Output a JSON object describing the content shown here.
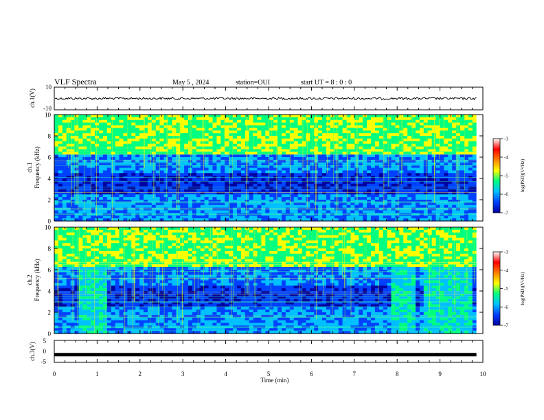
{
  "header": {
    "title": "VLF Spectra",
    "date": "May 5 , 2024",
    "station": "station=OUI",
    "start_ut": "start UT = 8 : 0 : 0"
  },
  "colorbar": {
    "label": "log(PSD)(V²/Hz)",
    "ticks": [
      "-3",
      "-4",
      "-5",
      "-6",
      "-7"
    ],
    "range": [
      -7,
      -3
    ],
    "colors": [
      "#0000a0",
      "#0040ff",
      "#00c0ff",
      "#00ff80",
      "#ffff00",
      "#ff8000",
      "#ff0000",
      "#ffffff"
    ]
  },
  "panels": {
    "ch1_waveform": {
      "ylabel": "ch.1(V)",
      "yticks": [
        "10",
        "-10"
      ],
      "ylim": [
        -10,
        10
      ]
    },
    "ch1_spectrum": {
      "ylabel": "ch.1",
      "ylabel2": "Frequency (kHz)",
      "yticks": [
        "10",
        "8",
        "6",
        "4",
        "2",
        "0"
      ],
      "ylim": [
        0,
        10
      ]
    },
    "ch2_spectrum": {
      "ylabel": "ch.2",
      "ylabel2": "Frequency (kHz)",
      "yticks": [
        "10",
        "8",
        "6",
        "4",
        "2",
        "0"
      ],
      "ylim": [
        0,
        10
      ]
    },
    "ch3_waveform": {
      "ylabel": "ch.3(V)",
      "yticks": [
        "5",
        "0",
        "-5"
      ],
      "ylim": [
        -5,
        5
      ],
      "value": -1.5
    }
  },
  "xaxis": {
    "label": "Time (min)",
    "ticks": [
      "0",
      "1",
      "2",
      "3",
      "4",
      "5",
      "6",
      "7",
      "8",
      "9",
      "10"
    ],
    "xlim": [
      0,
      10
    ],
    "data_end": 9.85
  },
  "chart_data": [
    {
      "type": "line",
      "title": "VLF Spectra",
      "ylabel": "ch.1(V)",
      "xlabel": "Time (min)",
      "xlim": [
        0,
        10
      ],
      "ylim": [
        -10,
        10
      ],
      "series": [
        {
          "x": [
            0,
            9.85
          ],
          "values": [
            0,
            0
          ]
        }
      ]
    },
    {
      "type": "heatmap",
      "ylabel": "Frequency (kHz)",
      "xlim": [
        0,
        10
      ],
      "ylim": [
        0,
        10
      ],
      "zlim": [
        -7,
        -3
      ]
    },
    {
      "type": "heatmap",
      "ylabel": "Frequency (kHz)",
      "xlim": [
        0,
        10
      ],
      "ylim": [
        0,
        10
      ],
      "zlim": [
        -7,
        -3
      ]
    },
    {
      "type": "line",
      "ylabel": "ch.3(V)",
      "xlabel": "Time (min)",
      "xlim": [
        0,
        10
      ],
      "ylim": [
        -5,
        5
      ],
      "series": [
        {
          "x": [
            0,
            9.85
          ],
          "values": [
            -1.5,
            -1.5
          ]
        }
      ]
    }
  ]
}
